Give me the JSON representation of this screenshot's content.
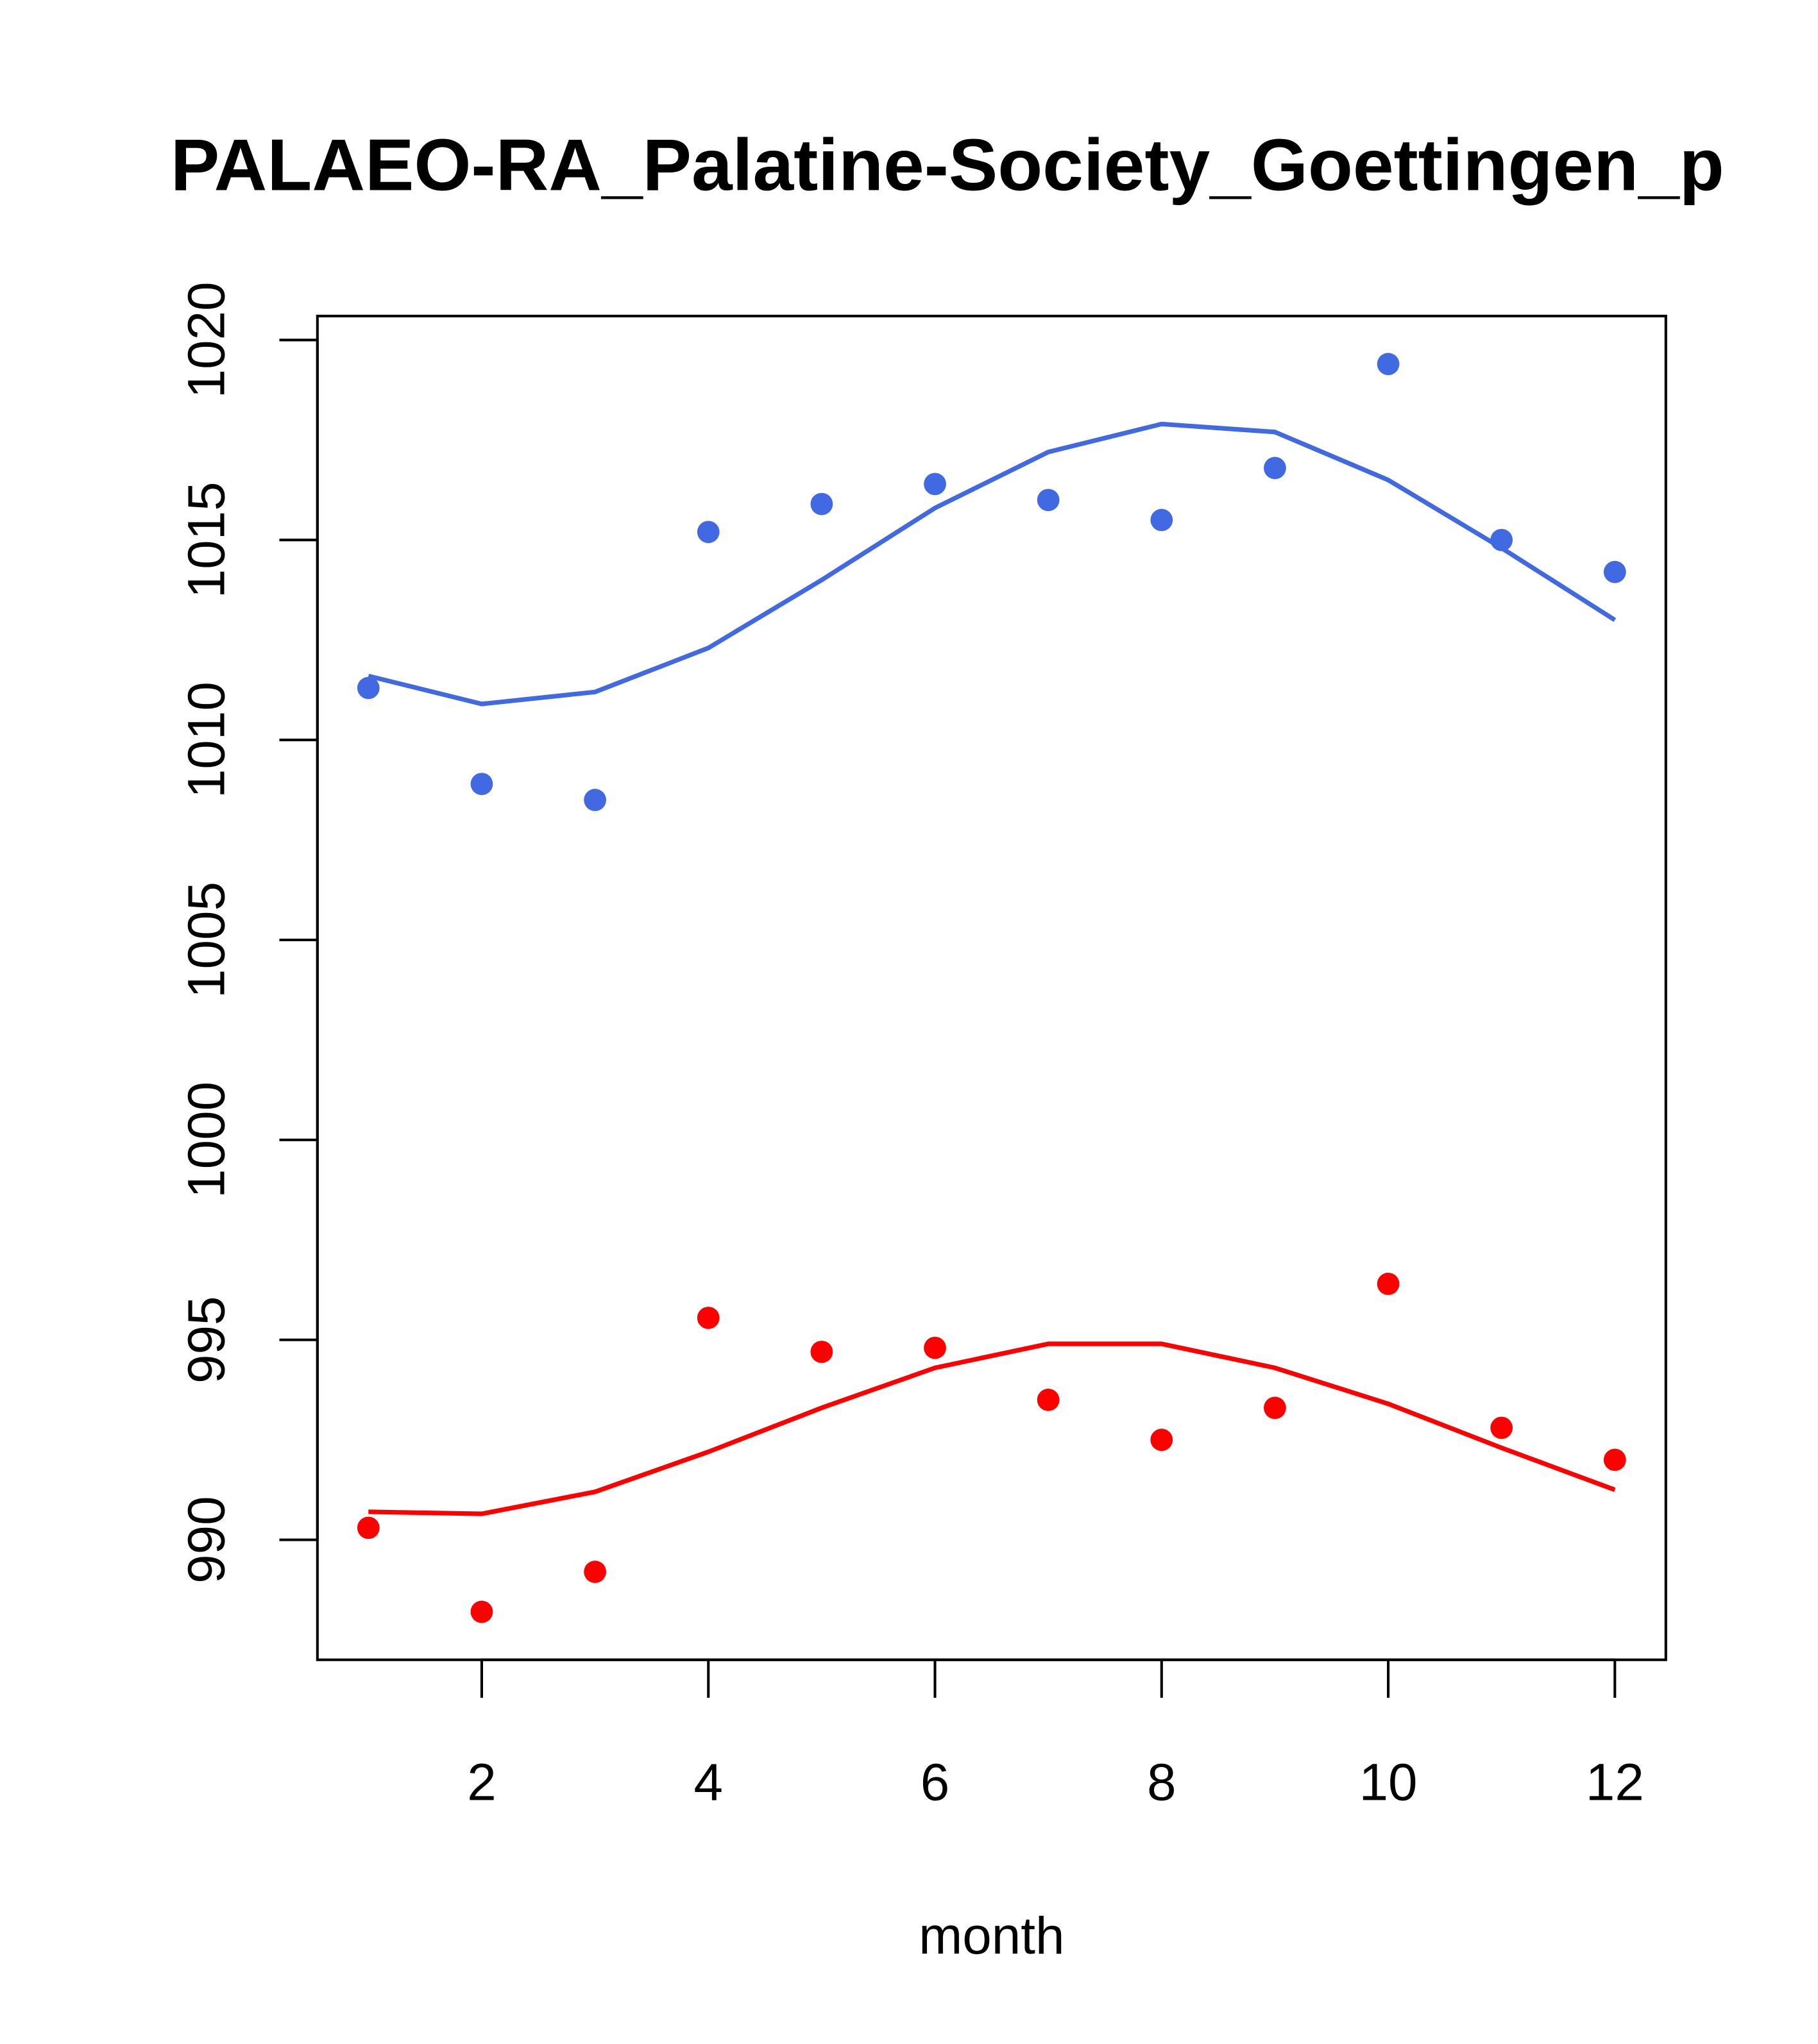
{
  "chart_data": {
    "type": "scatter",
    "title": "PALAEO-RA_Palatine-Society_Goettingen_p",
    "xlabel": "month",
    "ylabel": "",
    "xlim": [
      0.55,
      12.45
    ],
    "ylim": [
      987.0,
      1020.6
    ],
    "xticks": [
      2,
      4,
      6,
      8,
      10,
      12
    ],
    "yticks": [
      990,
      995,
      1000,
      1005,
      1010,
      1015,
      1020
    ],
    "grid": false,
    "x": [
      1,
      2,
      3,
      4,
      5,
      6,
      7,
      8,
      9,
      10,
      11,
      12
    ],
    "series": [
      {
        "name": "blue points",
        "kind": "points",
        "color": "#4169E1",
        "values": [
          1011.3,
          1008.9,
          1008.5,
          1015.2,
          1015.9,
          1016.4,
          1016.0,
          1015.5,
          1016.8,
          1019.4,
          1015.0,
          1014.2
        ]
      },
      {
        "name": "blue line",
        "kind": "line",
        "color": "#4169E1",
        "values": [
          1011.6,
          1010.9,
          1011.2,
          1012.3,
          1014.0,
          1015.8,
          1017.2,
          1017.9,
          1017.7,
          1016.5,
          1014.8,
          1013.0
        ]
      },
      {
        "name": "red points",
        "kind": "points",
        "color": "#FF0000",
        "values": [
          990.3,
          988.2,
          989.2,
          995.55,
          994.7,
          994.8,
          993.5,
          992.5,
          993.3,
          996.4,
          992.8,
          992.0
        ]
      },
      {
        "name": "red line",
        "kind": "line",
        "color": "#FF0000",
        "values": [
          990.7,
          990.65,
          991.2,
          992.2,
          993.3,
          994.3,
          994.9,
          994.9,
          994.3,
          993.4,
          992.3,
          991.25
        ]
      }
    ]
  }
}
